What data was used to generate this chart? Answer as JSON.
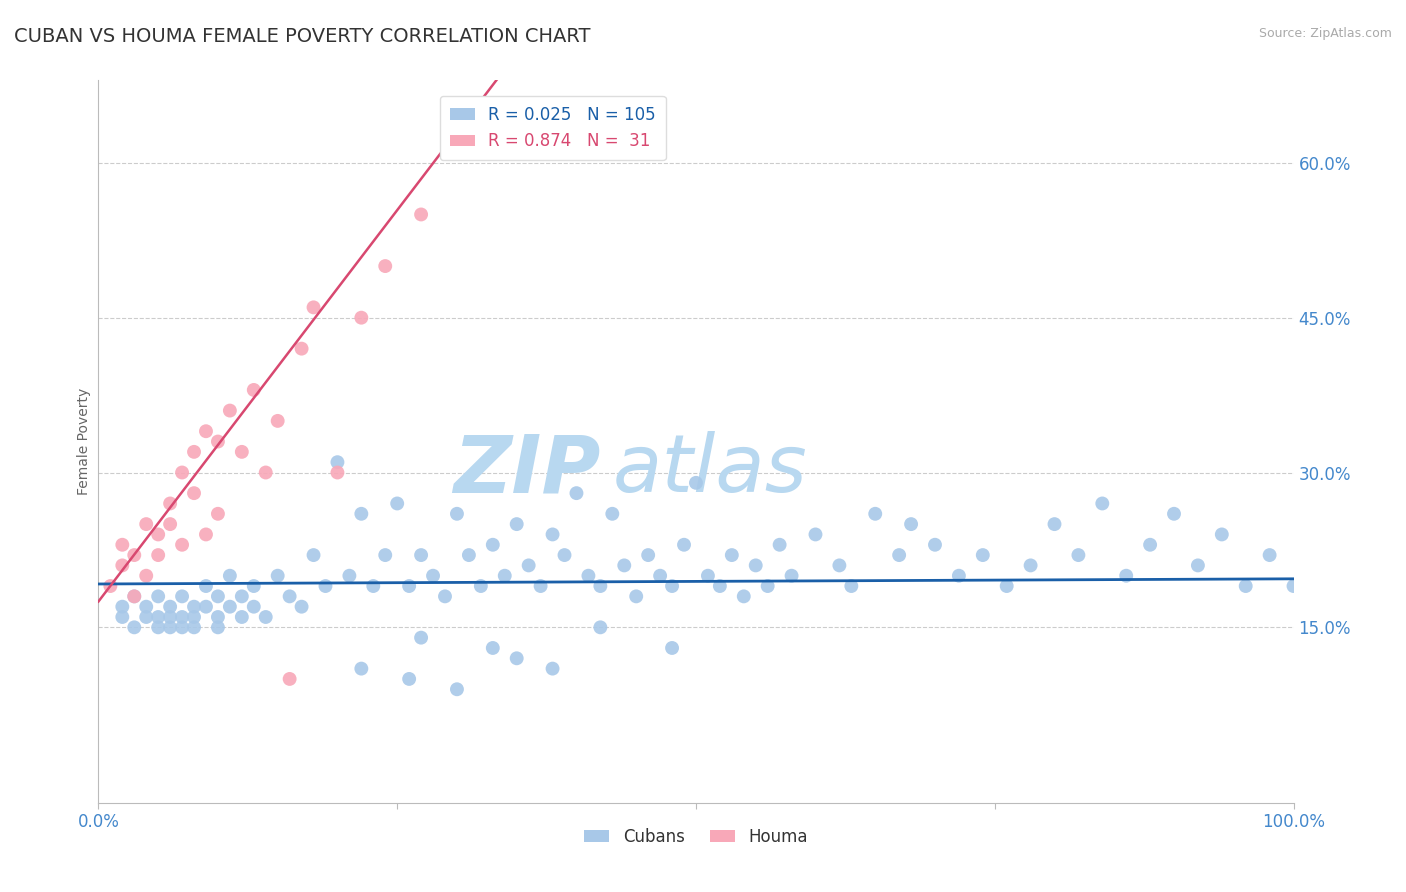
{
  "title": "CUBAN VS HOUMA FEMALE POVERTY CORRELATION CHART",
  "source_text": "Source: ZipAtlas.com",
  "ylabel": "Female Poverty",
  "xlim": [
    0.0,
    1.0
  ],
  "ylim": [
    -0.02,
    0.68
  ],
  "yticks": [
    0.15,
    0.3,
    0.45,
    0.6
  ],
  "ytick_labels": [
    "15.0%",
    "30.0%",
    "45.0%",
    "60.0%"
  ],
  "cubans_R": 0.025,
  "cubans_N": 105,
  "houma_R": 0.874,
  "houma_N": 31,
  "cubans_color": "#a8c8e8",
  "houma_color": "#f8a8b8",
  "cubans_line_color": "#1a5fa8",
  "houma_line_color": "#d84870",
  "background_color": "#ffffff",
  "grid_color": "#cccccc",
  "title_color": "#333333",
  "tick_label_color": "#4488cc",
  "watermark_zip": "#b8d8f0",
  "watermark_atlas": "#b8d8f0",
  "cubans_x": [
    0.02,
    0.02,
    0.03,
    0.03,
    0.04,
    0.04,
    0.05,
    0.05,
    0.05,
    0.06,
    0.06,
    0.06,
    0.07,
    0.07,
    0.07,
    0.08,
    0.08,
    0.08,
    0.09,
    0.09,
    0.1,
    0.1,
    0.1,
    0.11,
    0.11,
    0.12,
    0.12,
    0.13,
    0.13,
    0.14,
    0.15,
    0.16,
    0.17,
    0.18,
    0.19,
    0.2,
    0.21,
    0.22,
    0.23,
    0.24,
    0.25,
    0.26,
    0.27,
    0.28,
    0.29,
    0.3,
    0.31,
    0.32,
    0.33,
    0.34,
    0.35,
    0.36,
    0.37,
    0.38,
    0.39,
    0.4,
    0.41,
    0.42,
    0.43,
    0.44,
    0.45,
    0.46,
    0.47,
    0.48,
    0.49,
    0.5,
    0.51,
    0.52,
    0.53,
    0.54,
    0.55,
    0.56,
    0.57,
    0.58,
    0.6,
    0.62,
    0.63,
    0.65,
    0.67,
    0.68,
    0.7,
    0.72,
    0.74,
    0.76,
    0.78,
    0.8,
    0.82,
    0.84,
    0.86,
    0.88,
    0.9,
    0.92,
    0.94,
    0.96,
    0.98,
    1.0,
    0.22,
    0.26,
    0.3,
    0.35,
    0.27,
    0.33,
    0.38,
    0.42,
    0.48
  ],
  "cubans_y": [
    0.17,
    0.16,
    0.18,
    0.15,
    0.17,
    0.16,
    0.18,
    0.16,
    0.15,
    0.17,
    0.16,
    0.15,
    0.18,
    0.16,
    0.15,
    0.17,
    0.16,
    0.15,
    0.19,
    0.17,
    0.18,
    0.16,
    0.15,
    0.2,
    0.17,
    0.18,
    0.16,
    0.19,
    0.17,
    0.16,
    0.2,
    0.18,
    0.17,
    0.22,
    0.19,
    0.31,
    0.2,
    0.26,
    0.19,
    0.22,
    0.27,
    0.19,
    0.22,
    0.2,
    0.18,
    0.26,
    0.22,
    0.19,
    0.23,
    0.2,
    0.25,
    0.21,
    0.19,
    0.24,
    0.22,
    0.28,
    0.2,
    0.19,
    0.26,
    0.21,
    0.18,
    0.22,
    0.2,
    0.19,
    0.23,
    0.29,
    0.2,
    0.19,
    0.22,
    0.18,
    0.21,
    0.19,
    0.23,
    0.2,
    0.24,
    0.21,
    0.19,
    0.26,
    0.22,
    0.25,
    0.23,
    0.2,
    0.22,
    0.19,
    0.21,
    0.25,
    0.22,
    0.27,
    0.2,
    0.23,
    0.26,
    0.21,
    0.24,
    0.19,
    0.22,
    0.19,
    0.11,
    0.1,
    0.09,
    0.12,
    0.14,
    0.13,
    0.11,
    0.15,
    0.13
  ],
  "houma_x": [
    0.01,
    0.02,
    0.02,
    0.03,
    0.03,
    0.04,
    0.04,
    0.05,
    0.05,
    0.06,
    0.06,
    0.07,
    0.07,
    0.08,
    0.08,
    0.09,
    0.09,
    0.1,
    0.1,
    0.11,
    0.12,
    0.13,
    0.14,
    0.15,
    0.16,
    0.17,
    0.18,
    0.2,
    0.22,
    0.24,
    0.27
  ],
  "houma_y": [
    0.19,
    0.21,
    0.23,
    0.18,
    0.22,
    0.2,
    0.25,
    0.22,
    0.24,
    0.27,
    0.25,
    0.23,
    0.3,
    0.28,
    0.32,
    0.24,
    0.34,
    0.26,
    0.33,
    0.36,
    0.32,
    0.38,
    0.3,
    0.35,
    0.1,
    0.42,
    0.46,
    0.3,
    0.45,
    0.5,
    0.55
  ],
  "houma_line_x0": 0.0,
  "houma_line_y0": 0.175,
  "houma_line_x1": 0.3,
  "houma_line_y1": 0.63,
  "cubans_line_y_intercept": 0.192,
  "cubans_line_slope": 0.005
}
